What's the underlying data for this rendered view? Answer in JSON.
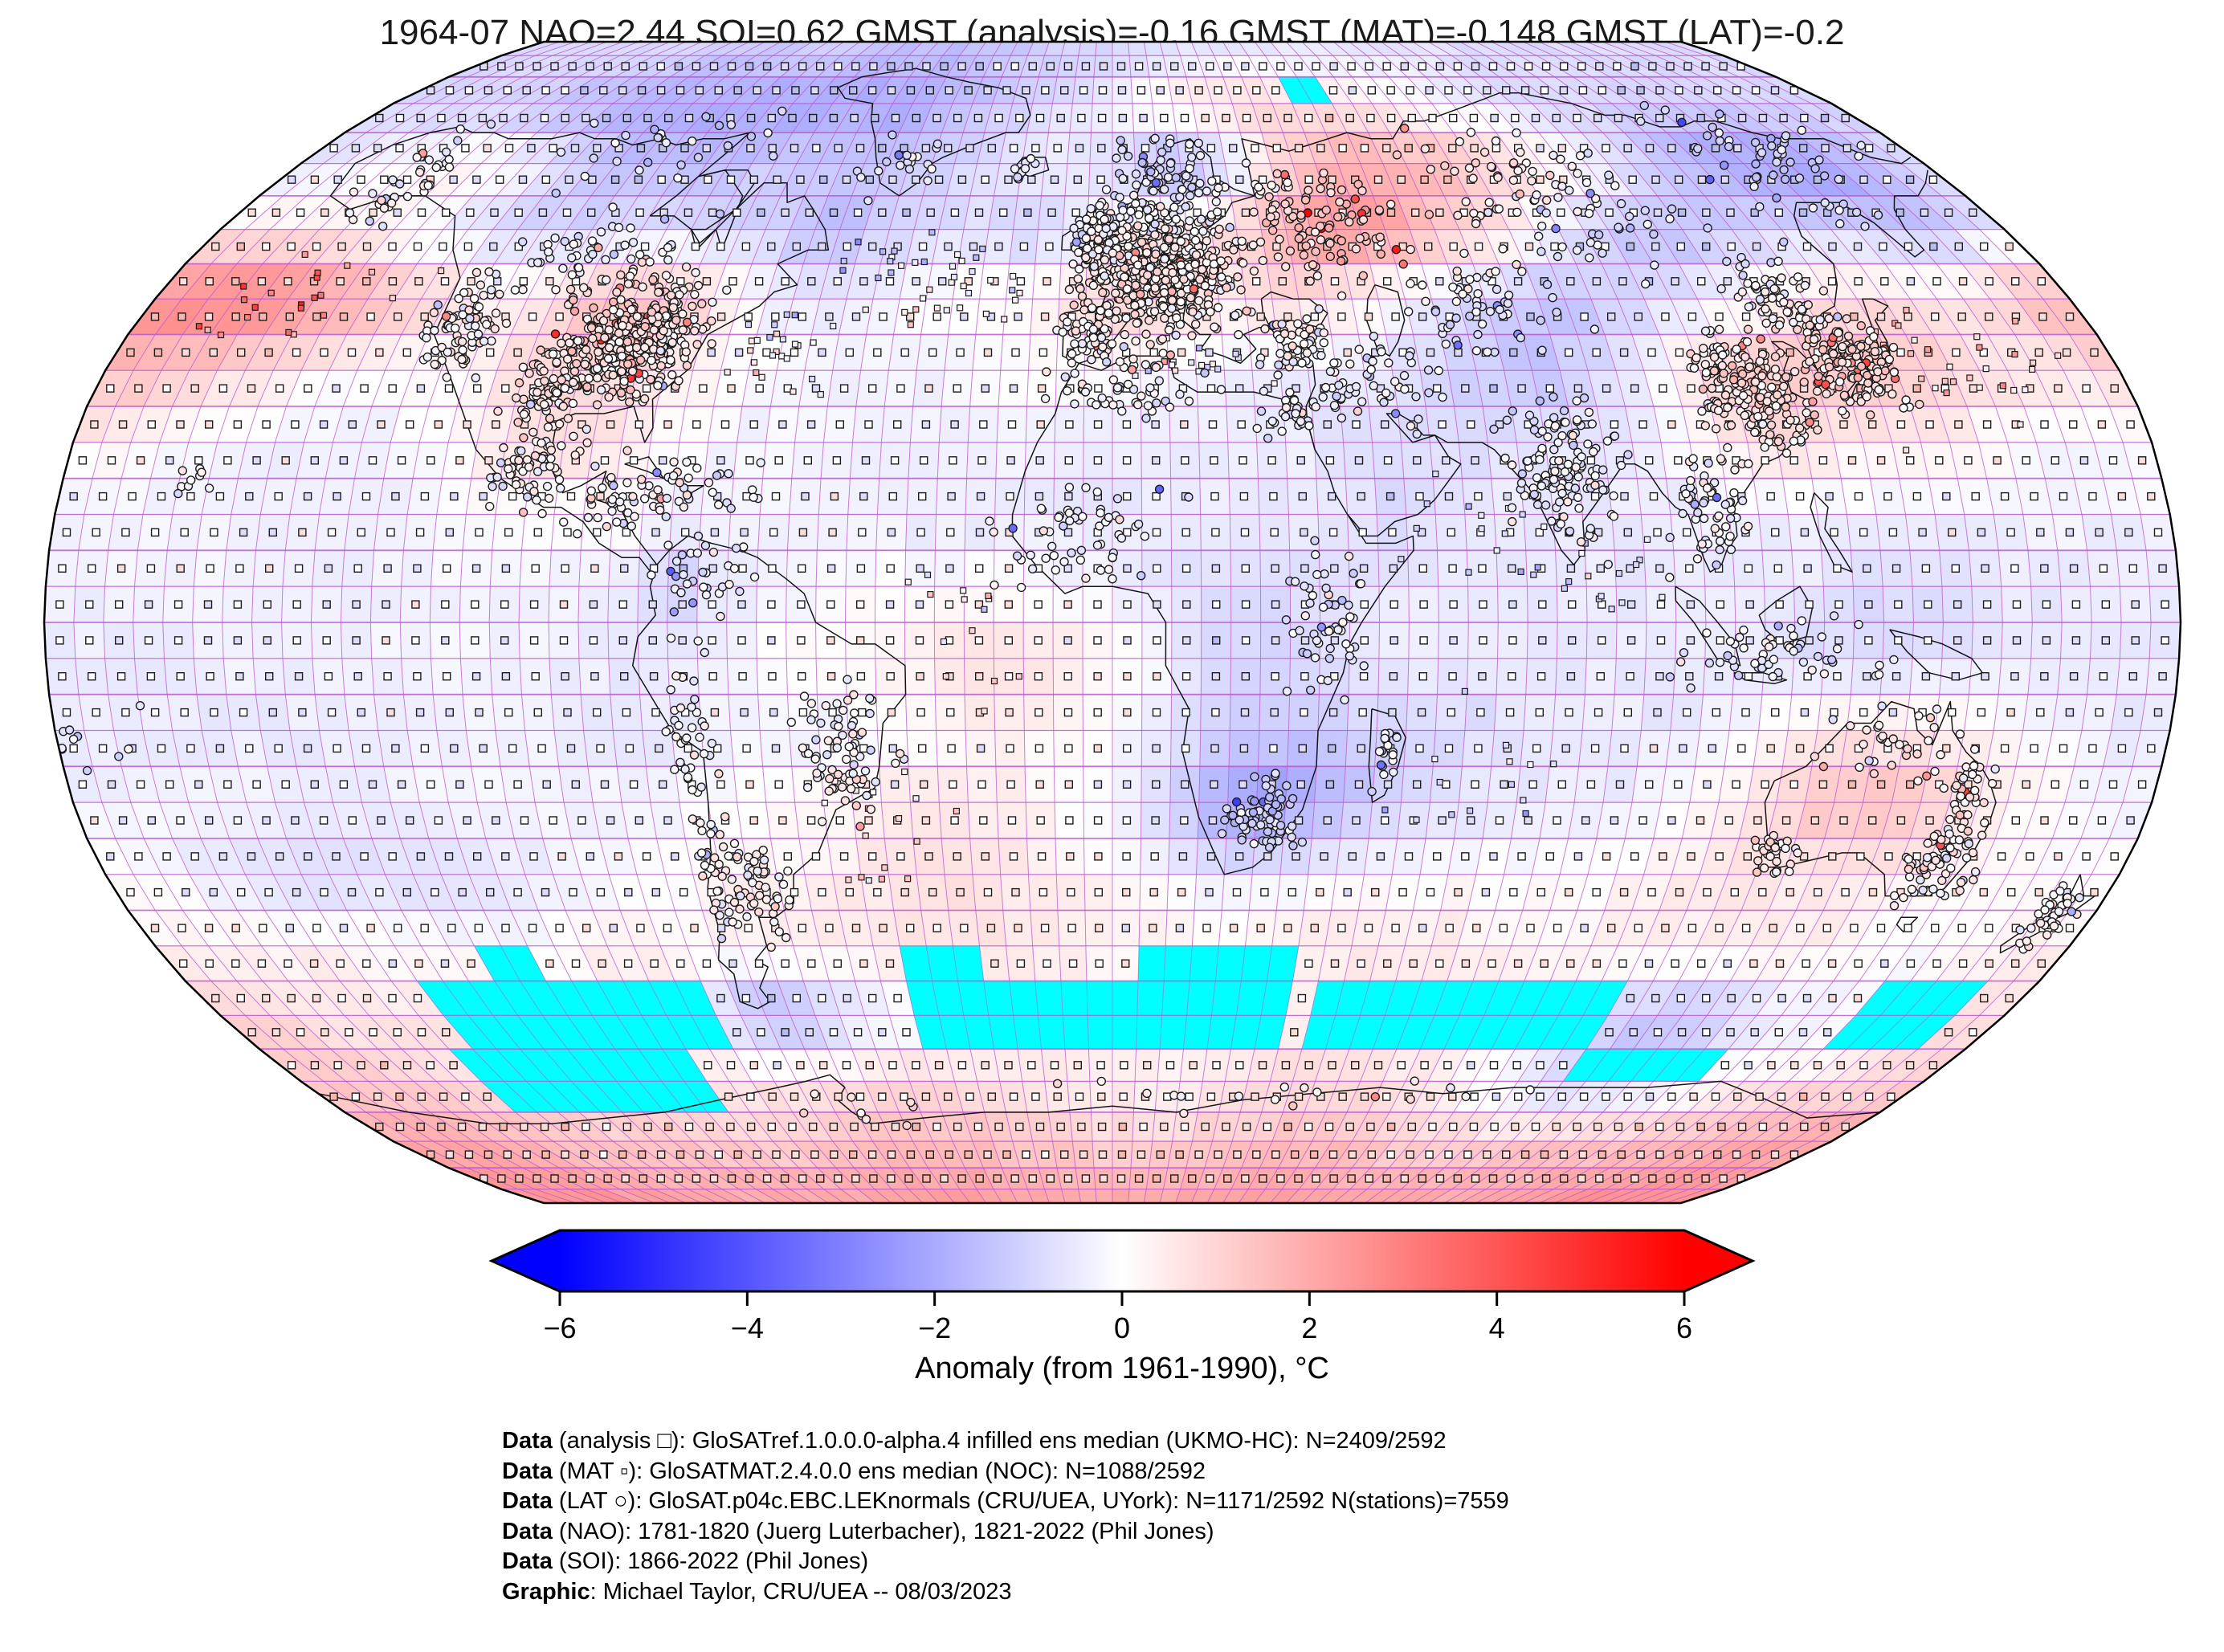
{
  "title": "1964-07 NAO=2.44 SOI=0.62 GMST (analysis)=-0.16 GMST (MAT)=-0.148 GMST (LAT)=-0.2",
  "colorbar": {
    "label": "Anomaly (from 1961-1990), °C",
    "min": -6,
    "max": 6,
    "tick_values": [
      -6,
      -4,
      -2,
      0,
      2,
      4,
      6
    ],
    "tick_labels": [
      "−6",
      "−4",
      "−2",
      "0",
      "2",
      "4",
      "6"
    ],
    "color_min": "#0000ff",
    "color_mid": "#ffffff",
    "color_max": "#ff0000"
  },
  "credits": [
    {
      "bold": "Data",
      "text": " (analysis □): GloSATref.1.0.0.0-alpha.4 infilled ens median (UKMO-HC): N=2409/2592"
    },
    {
      "bold": "Data",
      "text": " (MAT ▫): GloSATMAT.2.4.0.0 ens median (NOC): N=1088/2592"
    },
    {
      "bold": "Data",
      "text": " (LAT ○): GloSAT.p04c.EBC.LEKnormals (CRU/UEA, UYork): N=1171/2592 N(stations)=7559"
    },
    {
      "bold": "Data",
      "text": " (NAO): 1781-1820 (Juerg Luterbacher), 1821-2022 (Phil Jones)"
    },
    {
      "bold": "Data",
      "text": " (SOI): 1866-2022 (Phil Jones)"
    },
    {
      "bold": "Graphic",
      "text": ": Michael Taylor, CRU/UEA -- 08/03/2023"
    }
  ],
  "colors": {
    "gridline": "#ba55d3",
    "coastline": "#141414",
    "missing": "#00ffff",
    "map_border": "#000000",
    "marker_stroke": "#1c1c1c"
  },
  "chart_data": {
    "type": "heatmap",
    "projection": "robinson",
    "units": "°C anomaly from 1961-1990",
    "value_range": [
      -6,
      6
    ],
    "cell_size_deg": 5,
    "grid_deg": 10,
    "lat_centers": [
      85,
      75,
      65,
      55,
      45,
      35,
      25,
      15,
      5,
      -5,
      -15,
      -25,
      -35,
      -45,
      -55,
      -65,
      -75,
      -85
    ],
    "lon_start": -175,
    "lon_step": 10,
    "anomaly_grid": [
      [
        -0.8,
        -0.8,
        -0.8,
        -0.8,
        -1.0,
        -1.0,
        -1.2,
        -1.2,
        -1.2,
        -1.2,
        -1.2,
        -1.5,
        -1.5,
        -1.5,
        -1.2,
        -1.2,
        -1.0,
        -1.0,
        -0.8,
        -0.8,
        -0.6,
        -0.5,
        -0.5,
        -0.5,
        -0.5,
        -0.5,
        -0.6,
        -0.6,
        -0.8,
        -0.8,
        -0.8,
        -0.8,
        -0.8,
        -0.8,
        -0.8,
        -0.8
      ],
      [
        -1.0,
        -1.0,
        -1.0,
        -1.2,
        -1.5,
        -1.8,
        -2.0,
        -2.0,
        -2.0,
        -2.0,
        -2.0,
        -2.0,
        -2.0,
        -1.8,
        -1.5,
        -1.2,
        -0.8,
        -0.5,
        0.0,
        0.5,
        0.8,
        1.0,
        0.8,
        0.5,
        0.3,
        0.0,
        -0.3,
        -0.5,
        -0.8,
        -0.8,
        -1.0,
        -1.0,
        -1.0,
        -1.0,
        -1.0,
        -1.0
      ],
      [
        -0.5,
        -0.3,
        0.0,
        0.3,
        0.0,
        -0.5,
        -1.2,
        -1.5,
        -1.5,
        -1.5,
        -1.2,
        -1.2,
        -1.5,
        -1.2,
        -1.0,
        -0.5,
        -0.5,
        -0.5,
        -1.2,
        -1.8,
        -1.2,
        0.5,
        1.5,
        2.0,
        1.8,
        1.5,
        1.0,
        0.5,
        0.0,
        -0.8,
        -1.5,
        -2.0,
        -2.2,
        -2.2,
        -1.8,
        -1.0
      ],
      [
        0.3,
        0.5,
        0.3,
        0.0,
        -0.5,
        -0.8,
        -1.0,
        -1.0,
        -0.8,
        -0.8,
        -1.0,
        -1.2,
        -1.5,
        -1.0,
        -0.8,
        -0.8,
        -1.2,
        -0.5,
        0.5,
        0.3,
        1.0,
        2.0,
        2.5,
        2.2,
        1.5,
        0.8,
        0.0,
        -0.8,
        -1.5,
        -1.5,
        -1.2,
        -1.0,
        -1.0,
        -1.2,
        -1.5,
        -0.8
      ],
      [
        2.8,
        3.0,
        2.8,
        2.2,
        1.5,
        0.8,
        0.3,
        0.8,
        1.5,
        1.5,
        0.8,
        -0.3,
        -0.5,
        -0.3,
        0.0,
        0.3,
        0.3,
        0.8,
        1.0,
        0.8,
        0.5,
        1.0,
        0.3,
        -0.3,
        -0.8,
        -1.2,
        -1.5,
        -1.2,
        -0.8,
        -0.3,
        0.3,
        0.8,
        0.8,
        0.5,
        1.0,
        1.8
      ],
      [
        1.5,
        1.2,
        0.8,
        0.3,
        0.0,
        0.0,
        0.3,
        0.8,
        1.0,
        0.8,
        0.3,
        0.0,
        -0.3,
        -0.3,
        -0.3,
        -0.3,
        0.0,
        0.0,
        0.0,
        -0.3,
        -0.3,
        -0.5,
        -0.5,
        -0.8,
        -1.2,
        -1.5,
        -1.0,
        -0.3,
        0.8,
        1.5,
        1.5,
        1.5,
        1.2,
        0.8,
        0.5,
        0.8
      ],
      [
        0.3,
        0.0,
        -0.3,
        -0.3,
        -0.3,
        -0.3,
        0.0,
        0.5,
        0.8,
        0.5,
        0.0,
        -0.3,
        -0.3,
        -0.3,
        -0.3,
        -0.3,
        -0.3,
        -0.5,
        -0.5,
        -0.5,
        -0.5,
        -0.5,
        -0.8,
        -0.8,
        -0.8,
        -0.5,
        -0.5,
        -0.3,
        0.3,
        0.8,
        0.5,
        0.3,
        0.3,
        0.0,
        -0.3,
        0.0
      ],
      [
        -0.3,
        -0.3,
        -0.3,
        -0.3,
        -0.3,
        -0.3,
        -0.3,
        0.0,
        0.0,
        0.0,
        -0.3,
        -0.3,
        -0.3,
        -0.3,
        -0.5,
        -0.5,
        -0.5,
        -0.5,
        -0.5,
        -0.5,
        -0.5,
        -0.5,
        -0.8,
        -0.8,
        -0.5,
        -0.5,
        -0.5,
        -0.5,
        -0.3,
        -0.3,
        -0.3,
        -0.3,
        -0.3,
        -0.3,
        -0.3,
        -0.3
      ],
      [
        -0.3,
        -0.3,
        -0.3,
        -0.3,
        -0.3,
        -0.3,
        -0.3,
        -0.3,
        -0.3,
        -0.3,
        -1.2,
        -0.5,
        -0.3,
        0.0,
        0.0,
        0.0,
        0.0,
        -0.3,
        -0.5,
        -0.8,
        -0.8,
        -0.8,
        -0.5,
        -0.5,
        -0.5,
        -0.5,
        -0.5,
        -0.5,
        -0.5,
        -0.5,
        -0.8,
        -0.8,
        -0.8,
        -0.5,
        -0.5,
        -0.5
      ],
      [
        -0.5,
        -0.5,
        -0.5,
        -0.3,
        -0.3,
        -0.3,
        -0.3,
        -0.3,
        -0.3,
        -0.5,
        -0.5,
        -0.3,
        0.0,
        0.3,
        0.3,
        0.8,
        0.8,
        0.5,
        0.0,
        -0.8,
        -1.0,
        -0.8,
        -0.5,
        -0.5,
        -0.5,
        -0.5,
        -0.5,
        -0.5,
        -0.5,
        -0.8,
        -0.8,
        -0.8,
        -0.5,
        -0.5,
        -0.5,
        -0.5
      ],
      [
        -0.5,
        -0.5,
        -0.5,
        -0.5,
        -0.5,
        -0.5,
        -0.3,
        -0.3,
        -0.3,
        -0.5,
        -0.5,
        -0.3,
        -0.3,
        -0.3,
        0.0,
        0.3,
        0.3,
        0.0,
        -0.3,
        -0.8,
        -1.2,
        -1.2,
        -1.0,
        -0.8,
        -0.8,
        -0.5,
        -0.5,
        -0.5,
        -0.3,
        0.3,
        0.5,
        0.5,
        0.3,
        0.0,
        -0.3,
        -0.5
      ],
      [
        -0.3,
        -0.3,
        -0.3,
        -0.3,
        -0.3,
        -0.3,
        -0.3,
        -0.3,
        -0.3,
        -0.3,
        -0.3,
        0.0,
        0.0,
        0.3,
        0.5,
        0.5,
        0.3,
        0.0,
        -0.5,
        -1.8,
        -2.5,
        -2.0,
        -1.2,
        -0.8,
        -0.5,
        -0.5,
        -0.5,
        -0.3,
        0.3,
        1.0,
        1.5,
        1.5,
        1.0,
        0.3,
        0.0,
        -0.3
      ],
      [
        0.0,
        -0.3,
        -0.8,
        -0.8,
        -0.8,
        -0.8,
        -0.8,
        -0.5,
        -0.3,
        0.0,
        0.0,
        0.3,
        0.3,
        0.5,
        0.8,
        0.8,
        0.5,
        0.3,
        0.0,
        -0.3,
        -0.5,
        -0.3,
        0.0,
        0.0,
        0.0,
        0.0,
        0.0,
        0.3,
        0.5,
        0.5,
        0.5,
        0.5,
        0.3,
        0.0,
        0.0,
        0.0
      ],
      [
        0.3,
        0.3,
        0.3,
        0.3,
        0.0,
        0.0,
        0.0,
        0.0,
        0.3,
        0.3,
        0.3,
        0.5,
        0.5,
        0.5,
        0.5,
        0.5,
        0.5,
        0.3,
        0.3,
        0.3,
        0.3,
        0.5,
        0.5,
        0.5,
        0.5,
        0.3,
        0.3,
        0.3,
        0.3,
        0.5,
        0.5,
        0.3,
        0.0,
        0.0,
        0.3,
        0.3
      ],
      [
        1.0,
        0.8,
        0.5,
        0.5,
        0.5,
        0.5,
        0.5,
        0.5,
        0.5,
        0.3,
        -1.5,
        -1.8,
        -1.0,
        -0.5,
        -0.3,
        0.0,
        0.3,
        0.3,
        0.3,
        0.3,
        0.3,
        0.3,
        0.3,
        0.5,
        0.5,
        0.5,
        0.3,
        -0.5,
        -1.2,
        -1.5,
        -1.0,
        -0.5,
        -0.3,
        -0.3,
        0.5,
        0.8
      ],
      [
        1.2,
        1.2,
        1.0,
        0.8,
        0.8,
        0.8,
        0.8,
        0.8,
        0.5,
        0.5,
        0.5,
        0.8,
        0.8,
        0.8,
        0.8,
        0.8,
        0.5,
        0.3,
        0.3,
        0.3,
        0.5,
        0.8,
        0.8,
        0.8,
        0.5,
        0.3,
        -0.3,
        -0.8,
        -1.2,
        -1.0,
        -0.5,
        0.0,
        0.3,
        0.5,
        0.8,
        1.0
      ],
      [
        2.0,
        2.0,
        1.8,
        1.5,
        1.2,
        1.2,
        1.2,
        1.2,
        1.0,
        1.0,
        1.2,
        1.2,
        1.5,
        1.5,
        1.5,
        1.2,
        1.2,
        1.0,
        1.0,
        1.0,
        1.2,
        1.2,
        1.5,
        1.5,
        1.2,
        1.0,
        1.0,
        1.0,
        1.2,
        1.2,
        1.2,
        1.5,
        1.5,
        1.8,
        2.0,
        2.0
      ],
      [
        2.5,
        2.5,
        2.5,
        2.2,
        2.2,
        2.0,
        2.0,
        2.0,
        2.0,
        2.0,
        2.0,
        2.2,
        2.2,
        2.2,
        2.2,
        2.0,
        2.0,
        2.0,
        2.0,
        2.0,
        2.0,
        2.2,
        2.2,
        2.2,
        2.0,
        2.0,
        2.0,
        2.0,
        2.0,
        2.2,
        2.2,
        2.2,
        2.5,
        2.5,
        2.5,
        2.5
      ]
    ],
    "missing_blocks": [
      [
        75,
        80,
        45,
        55
      ],
      [
        -52,
        -47,
        -122,
        -112
      ],
      [
        -60,
        -50,
        -137,
        -82
      ],
      [
        -70,
        -60,
        -140,
        -88
      ],
      [
        -52,
        -46,
        -42,
        -25
      ],
      [
        -61,
        -52,
        -41,
        25
      ],
      [
        -58,
        -46,
        5,
        35
      ],
      [
        -58,
        -48,
        38,
        75
      ],
      [
        -61,
        -52,
        75,
        100
      ],
      [
        -65,
        -60,
        100,
        130
      ],
      [
        -58,
        -52,
        148,
        168
      ]
    ],
    "markers": {
      "analysis": "open-square",
      "mat": "small-open-square",
      "lat_stations": "open-circle"
    },
    "station_clusters": [
      [
        39,
        -87,
        5.5,
        9,
        380
      ],
      [
        41,
        -119,
        5,
        5,
        80
      ],
      [
        33,
        -100,
        4,
        5,
        80
      ],
      [
        51,
        -100,
        4,
        14,
        60
      ],
      [
        63,
        -152,
        5,
        7,
        40
      ],
      [
        68,
        -100,
        5,
        18,
        28
      ],
      [
        21,
        -100,
        4,
        5,
        60
      ],
      [
        16,
        -85,
        4,
        8,
        40
      ],
      [
        19,
        -72,
        3,
        7,
        35
      ],
      [
        7,
        -70,
        4,
        6,
        35
      ],
      [
        -15,
        -72,
        8,
        3,
        40
      ],
      [
        -18,
        -46,
        7,
        7,
        75
      ],
      [
        -36,
        -64,
        6,
        5,
        55
      ],
      [
        -35,
        -71,
        6,
        2,
        28
      ],
      [
        49,
        10,
        6,
        10,
        560
      ],
      [
        54,
        -3,
        3.5,
        4,
        90
      ],
      [
        62,
        12,
        5,
        8,
        90
      ],
      [
        40,
        -4,
        3,
        4,
        60
      ],
      [
        56,
        42,
        6,
        12,
        110
      ],
      [
        60,
        90,
        8,
        20,
        95
      ],
      [
        64,
        145,
        7,
        15,
        60
      ],
      [
        44,
        68,
        5,
        12,
        60
      ],
      [
        33,
        44,
        5,
        9,
        60
      ],
      [
        39,
        32,
        3,
        5,
        48
      ],
      [
        33,
        3,
        3,
        10,
        55
      ],
      [
        29,
        31,
        3,
        4,
        28
      ],
      [
        11,
        -5,
        5,
        10,
        60
      ],
      [
        0,
        36,
        7,
        5,
        55
      ],
      [
        -27,
        26,
        4,
        5,
        75
      ],
      [
        -19,
        47,
        3,
        1.5,
        18
      ],
      [
        21,
        78,
        7,
        7,
        135
      ],
      [
        16,
        102,
        6,
        5,
        60
      ],
      [
        -4,
        112,
        4,
        12,
        55
      ],
      [
        32,
        113,
        7,
        7,
        190
      ],
      [
        45,
        125,
        4,
        6,
        70
      ],
      [
        36,
        133,
        4,
        6,
        150
      ],
      [
        -33,
        147,
        4,
        5,
        75
      ],
      [
        -32,
        117,
        2.5,
        3,
        30
      ],
      [
        -17,
        135,
        4,
        10,
        34
      ],
      [
        -23,
        148,
        4,
        3,
        34
      ],
      [
        -41,
        173,
        3,
        3,
        40
      ],
      [
        -17,
        -175,
        6,
        10,
        10
      ],
      [
        20,
        -157,
        2,
        3,
        9
      ],
      [
        -67,
        45,
        2,
        50,
        18
      ],
      [
        -70,
        -60,
        3,
        10,
        9
      ],
      [
        65,
        -45,
        5,
        8,
        20
      ],
      [
        64,
        -19,
        1.5,
        3,
        10
      ]
    ],
    "mat_lanes": [
      [
        48,
        -35,
        5,
        16,
        40
      ],
      [
        38,
        -62,
        4,
        10,
        24
      ],
      [
        35,
        152,
        7,
        15,
        30
      ],
      [
        45,
        -150,
        5,
        13,
        22
      ],
      [
        12,
        64,
        5,
        10,
        18
      ],
      [
        5,
        85,
        4,
        8,
        14
      ],
      [
        -28,
        -40,
        7,
        9,
        18
      ],
      [
        36,
        16,
        2.5,
        10,
        18
      ],
      [
        -20,
        62,
        7,
        12,
        14
      ],
      [
        0,
        -25,
        7,
        7,
        14
      ]
    ]
  }
}
